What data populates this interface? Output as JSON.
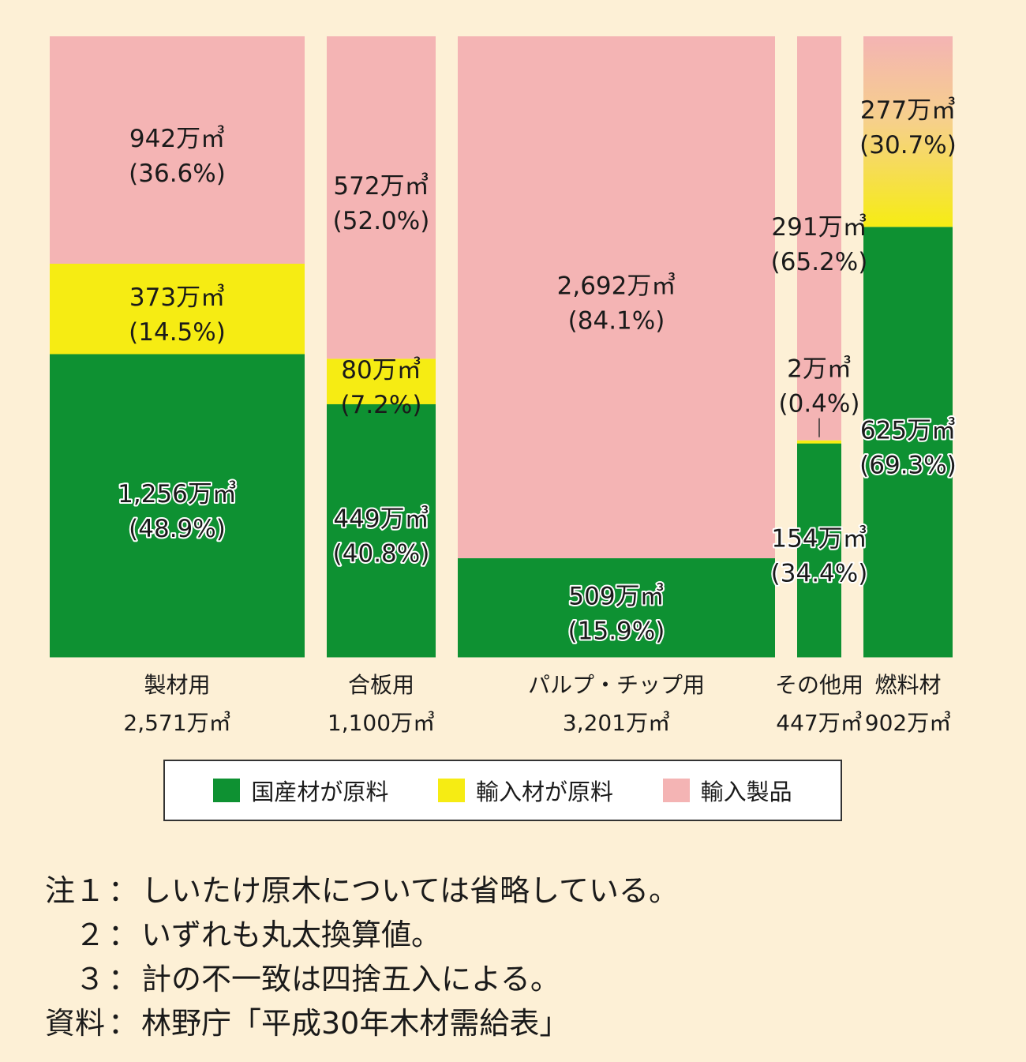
{
  "chart_data": {
    "type": "bar",
    "stacked": true,
    "categories": [
      {
        "name": "製材用",
        "total": "2,571万㎥"
      },
      {
        "name": "合板用",
        "total": "1,100万㎥"
      },
      {
        "name": "パルプ・チップ用",
        "total": "3,201万㎥"
      },
      {
        "name": "その他用",
        "total": "447万㎥"
      },
      {
        "name": "燃料材",
        "total": "902万㎥"
      }
    ],
    "series": [
      {
        "name": "国産材が原料",
        "color": "#0e9132",
        "values": [
          1256,
          449,
          509,
          154,
          625
        ],
        "labels": [
          "1,256万㎥",
          "449万㎥",
          "509万㎥",
          "154万㎥",
          "625万㎥"
        ],
        "percents": [
          "(48.9%)",
          "(40.8%)",
          "(15.9%)",
          "(34.4%)",
          "(69.3%)"
        ]
      },
      {
        "name": "輸入材が原料",
        "color": "#f6ec13",
        "values": [
          373,
          80,
          0,
          2,
          0
        ],
        "labels": [
          "373万㎥",
          "80万㎥",
          null,
          "2万㎥",
          null
        ],
        "percents": [
          "(14.5%)",
          "(7.2%)",
          null,
          "(0.4%)",
          null
        ]
      },
      {
        "name": "輸入製品",
        "color": "#f4b4b4",
        "values": [
          942,
          572,
          2692,
          291,
          277
        ],
        "labels": [
          "942万㎥",
          "572万㎥",
          "2,692万㎥",
          "291万㎥",
          "277万㎥"
        ],
        "percents": [
          "(36.6%)",
          "(52.0%)",
          "(84.1%)",
          "(65.2%)",
          "(30.7%)"
        ]
      }
    ],
    "legend": {
      "position": "bottom"
    }
  },
  "notes": [
    {
      "head": "注１",
      "text": "しいたけ原木については省略している。"
    },
    {
      "head": "２",
      "text": "いずれも丸太換算値。"
    },
    {
      "head": "３",
      "text": "計の不一致は四捨五入による。"
    },
    {
      "head": "資料",
      "text": "林野庁「平成30年木材需給表」"
    }
  ],
  "note_separator": "："
}
